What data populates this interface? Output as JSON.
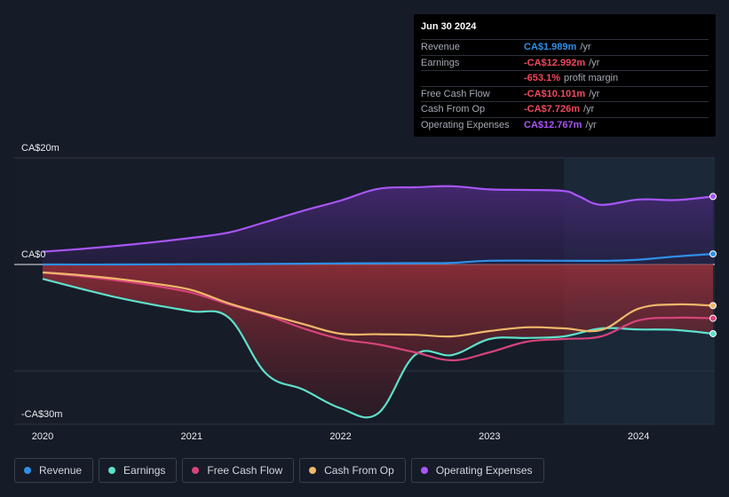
{
  "chart_data": {
    "type": "area",
    "title": "",
    "xlabel": "",
    "ylabel": "",
    "ylim": [
      -30,
      20
    ],
    "y_tick_labels": [
      {
        "value": 20,
        "label": "CA$20m"
      },
      {
        "value": 0,
        "label": "CA$0"
      },
      {
        "value": -30,
        "label": "-CA$30m"
      }
    ],
    "x_tick_labels": [
      {
        "value": 2020.0,
        "label": "2020"
      },
      {
        "value": 2021.0,
        "label": "2021"
      },
      {
        "value": 2022.0,
        "label": "2022"
      },
      {
        "value": 2023.0,
        "label": "2023"
      },
      {
        "value": 2024.0,
        "label": "2024"
      }
    ],
    "xlim": [
      2019.8,
      2024.5
    ],
    "highlight_start": 2023.5,
    "series": [
      {
        "name": "Revenue",
        "color": "#2f8fe8",
        "x": [
          2020.0,
          2020.5,
          2021.0,
          2021.5,
          2022.0,
          2022.5,
          2022.75,
          2023.0,
          2023.5,
          2023.8,
          2024.0,
          2024.25,
          2024.5
        ],
        "values": [
          0.0,
          0.0,
          0.05,
          0.1,
          0.2,
          0.25,
          0.3,
          0.7,
          0.7,
          0.7,
          0.9,
          1.5,
          1.989
        ]
      },
      {
        "name": "Earnings",
        "color": "#5ee0cb",
        "x": [
          2020.0,
          2020.25,
          2020.5,
          2020.75,
          2021.0,
          2021.25,
          2021.5,
          2021.75,
          2022.0,
          2022.25,
          2022.5,
          2022.75,
          2023.0,
          2023.25,
          2023.5,
          2023.75,
          2024.0,
          2024.25,
          2024.5
        ],
        "values": [
          -2.7,
          -4.5,
          -6.2,
          -7.6,
          -8.8,
          -10.0,
          -20.5,
          -23.5,
          -27.0,
          -28.0,
          -17.0,
          -17.0,
          -14.0,
          -13.8,
          -13.5,
          -12.0,
          -12.2,
          -12.3,
          -12.992
        ]
      },
      {
        "name": "Free Cash Flow",
        "color": "#d6437a",
        "x": [
          2020.0,
          2020.25,
          2020.5,
          2020.75,
          2021.0,
          2021.25,
          2021.5,
          2021.75,
          2022.0,
          2022.25,
          2022.5,
          2022.75,
          2023.0,
          2023.25,
          2023.5,
          2023.75,
          2024.0,
          2024.25,
          2024.5
        ],
        "values": [
          -1.5,
          -2.2,
          -3.0,
          -4.0,
          -5.3,
          -7.5,
          -9.5,
          -12.0,
          -14.0,
          -15.0,
          -16.5,
          -18.0,
          -16.5,
          -14.5,
          -14.0,
          -13.5,
          -10.5,
          -10.0,
          -10.101
        ]
      },
      {
        "name": "Cash From Op",
        "color": "#f0b86a",
        "x": [
          2020.0,
          2020.25,
          2020.5,
          2020.75,
          2021.0,
          2021.25,
          2021.5,
          2021.75,
          2022.0,
          2022.25,
          2022.5,
          2022.75,
          2023.0,
          2023.25,
          2023.5,
          2023.75,
          2024.0,
          2024.25,
          2024.5
        ],
        "values": [
          -1.5,
          -2.0,
          -2.7,
          -3.6,
          -4.8,
          -7.3,
          -9.3,
          -11.2,
          -13.0,
          -13.1,
          -13.2,
          -13.5,
          -12.5,
          -11.8,
          -12.0,
          -12.3,
          -8.3,
          -7.5,
          -7.726
        ]
      },
      {
        "name": "Operating Expenses",
        "color": "#a855f7",
        "x": [
          2020.0,
          2020.25,
          2020.5,
          2020.75,
          2021.0,
          2021.25,
          2021.5,
          2021.75,
          2022.0,
          2022.25,
          2022.5,
          2022.75,
          2023.0,
          2023.25,
          2023.5,
          2023.6,
          2023.75,
          2024.0,
          2024.25,
          2024.5
        ],
        "values": [
          2.4,
          2.9,
          3.5,
          4.2,
          5.0,
          6.0,
          8.0,
          10.1,
          12.0,
          14.2,
          14.5,
          14.7,
          14.1,
          14.0,
          13.8,
          12.8,
          11.2,
          12.2,
          12.1,
          12.767
        ]
      }
    ]
  },
  "tooltip": {
    "date": "Jun 30 2024",
    "rows": [
      {
        "label": "Revenue",
        "value": "CA$1.989m",
        "unit": "/yr",
        "color": "blue"
      },
      {
        "label": "Earnings",
        "value": "-CA$12.992m",
        "unit": "/yr",
        "color": "red"
      },
      {
        "label": "",
        "value": "-653.1%",
        "unit": "profit margin",
        "color": "red"
      },
      {
        "label": "Free Cash Flow",
        "value": "-CA$10.101m",
        "unit": "/yr",
        "color": "red"
      },
      {
        "label": "Cash From Op",
        "value": "-CA$7.726m",
        "unit": "/yr",
        "color": "red"
      },
      {
        "label": "Operating Expenses",
        "value": "CA$12.767m",
        "unit": "/yr",
        "color": "purple"
      }
    ]
  },
  "legend": [
    {
      "label": "Revenue",
      "color": "#2f8fe8"
    },
    {
      "label": "Earnings",
      "color": "#5ee0cb"
    },
    {
      "label": "Free Cash Flow",
      "color": "#d6437a"
    },
    {
      "label": "Cash From Op",
      "color": "#f0b86a"
    },
    {
      "label": "Operating Expenses",
      "color": "#a855f7"
    }
  ]
}
